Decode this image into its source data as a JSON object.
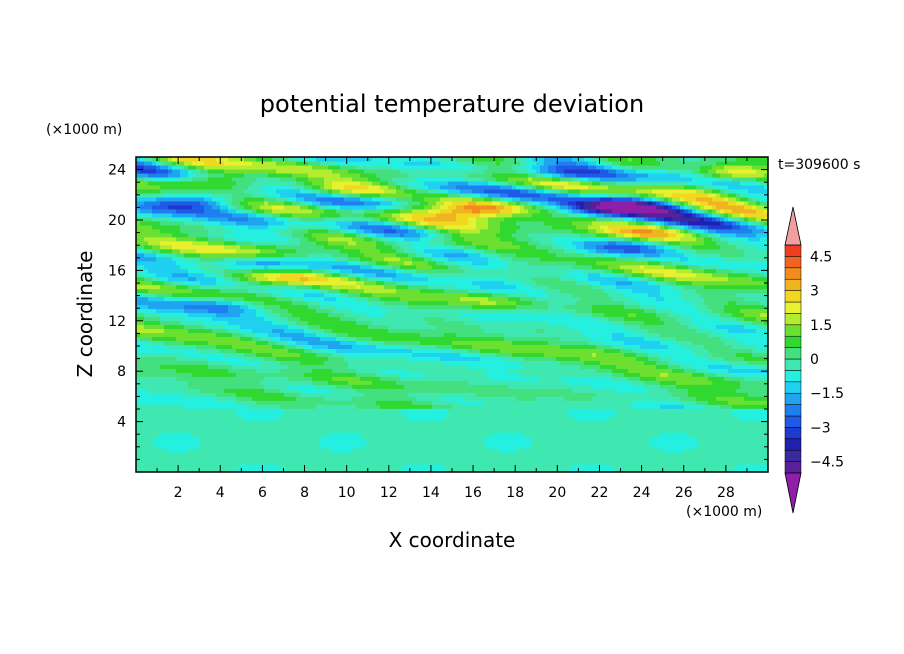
{
  "chart_data": {
    "type": "heatmap",
    "title": "potential temperature deviation",
    "xlabel": "X coordinate",
    "ylabel": "Z coordinate",
    "x_unit": "(×1000 m)",
    "y_unit": "(×1000 m)",
    "time_label": "t=309600 s",
    "xlim": [
      0,
      30
    ],
    "ylim": [
      0,
      25
    ],
    "x_ticks": [
      2,
      4,
      6,
      8,
      10,
      12,
      14,
      16,
      18,
      20,
      22,
      24,
      26,
      28
    ],
    "y_ticks": [
      4,
      8,
      12,
      16,
      20,
      24
    ],
    "colorbar": {
      "levels": [
        -5,
        -4.5,
        -4,
        -3.5,
        -3,
        -2.5,
        -2,
        -1.5,
        -1,
        -0.5,
        0,
        0.5,
        1,
        1.5,
        2,
        2.5,
        3,
        3.5,
        4,
        4.5,
        5
      ],
      "colors": [
        "#5a1f9a",
        "#3a2aa0",
        "#1f1fb0",
        "#1f3ad0",
        "#1f5ae6",
        "#1f7ef0",
        "#1fa5f0",
        "#1fd0f0",
        "#25f0e0",
        "#3ee8b0",
        "#44e080",
        "#30d830",
        "#6ce030",
        "#b4ec30",
        "#e8f030",
        "#f0d820",
        "#f0b420",
        "#f08c20",
        "#f06420",
        "#f03c20",
        "#e81e1e"
      ],
      "under_color": "#8f1fa8",
      "over_color": "#f0a0a0",
      "tick_labels": [
        "4.5",
        "3",
        "1.5",
        "0",
        "−1.5",
        "−3",
        "−4.5"
      ],
      "tick_values": [
        4.5,
        3,
        1.5,
        0,
        -1.5,
        -3,
        -4.5
      ]
    }
  }
}
